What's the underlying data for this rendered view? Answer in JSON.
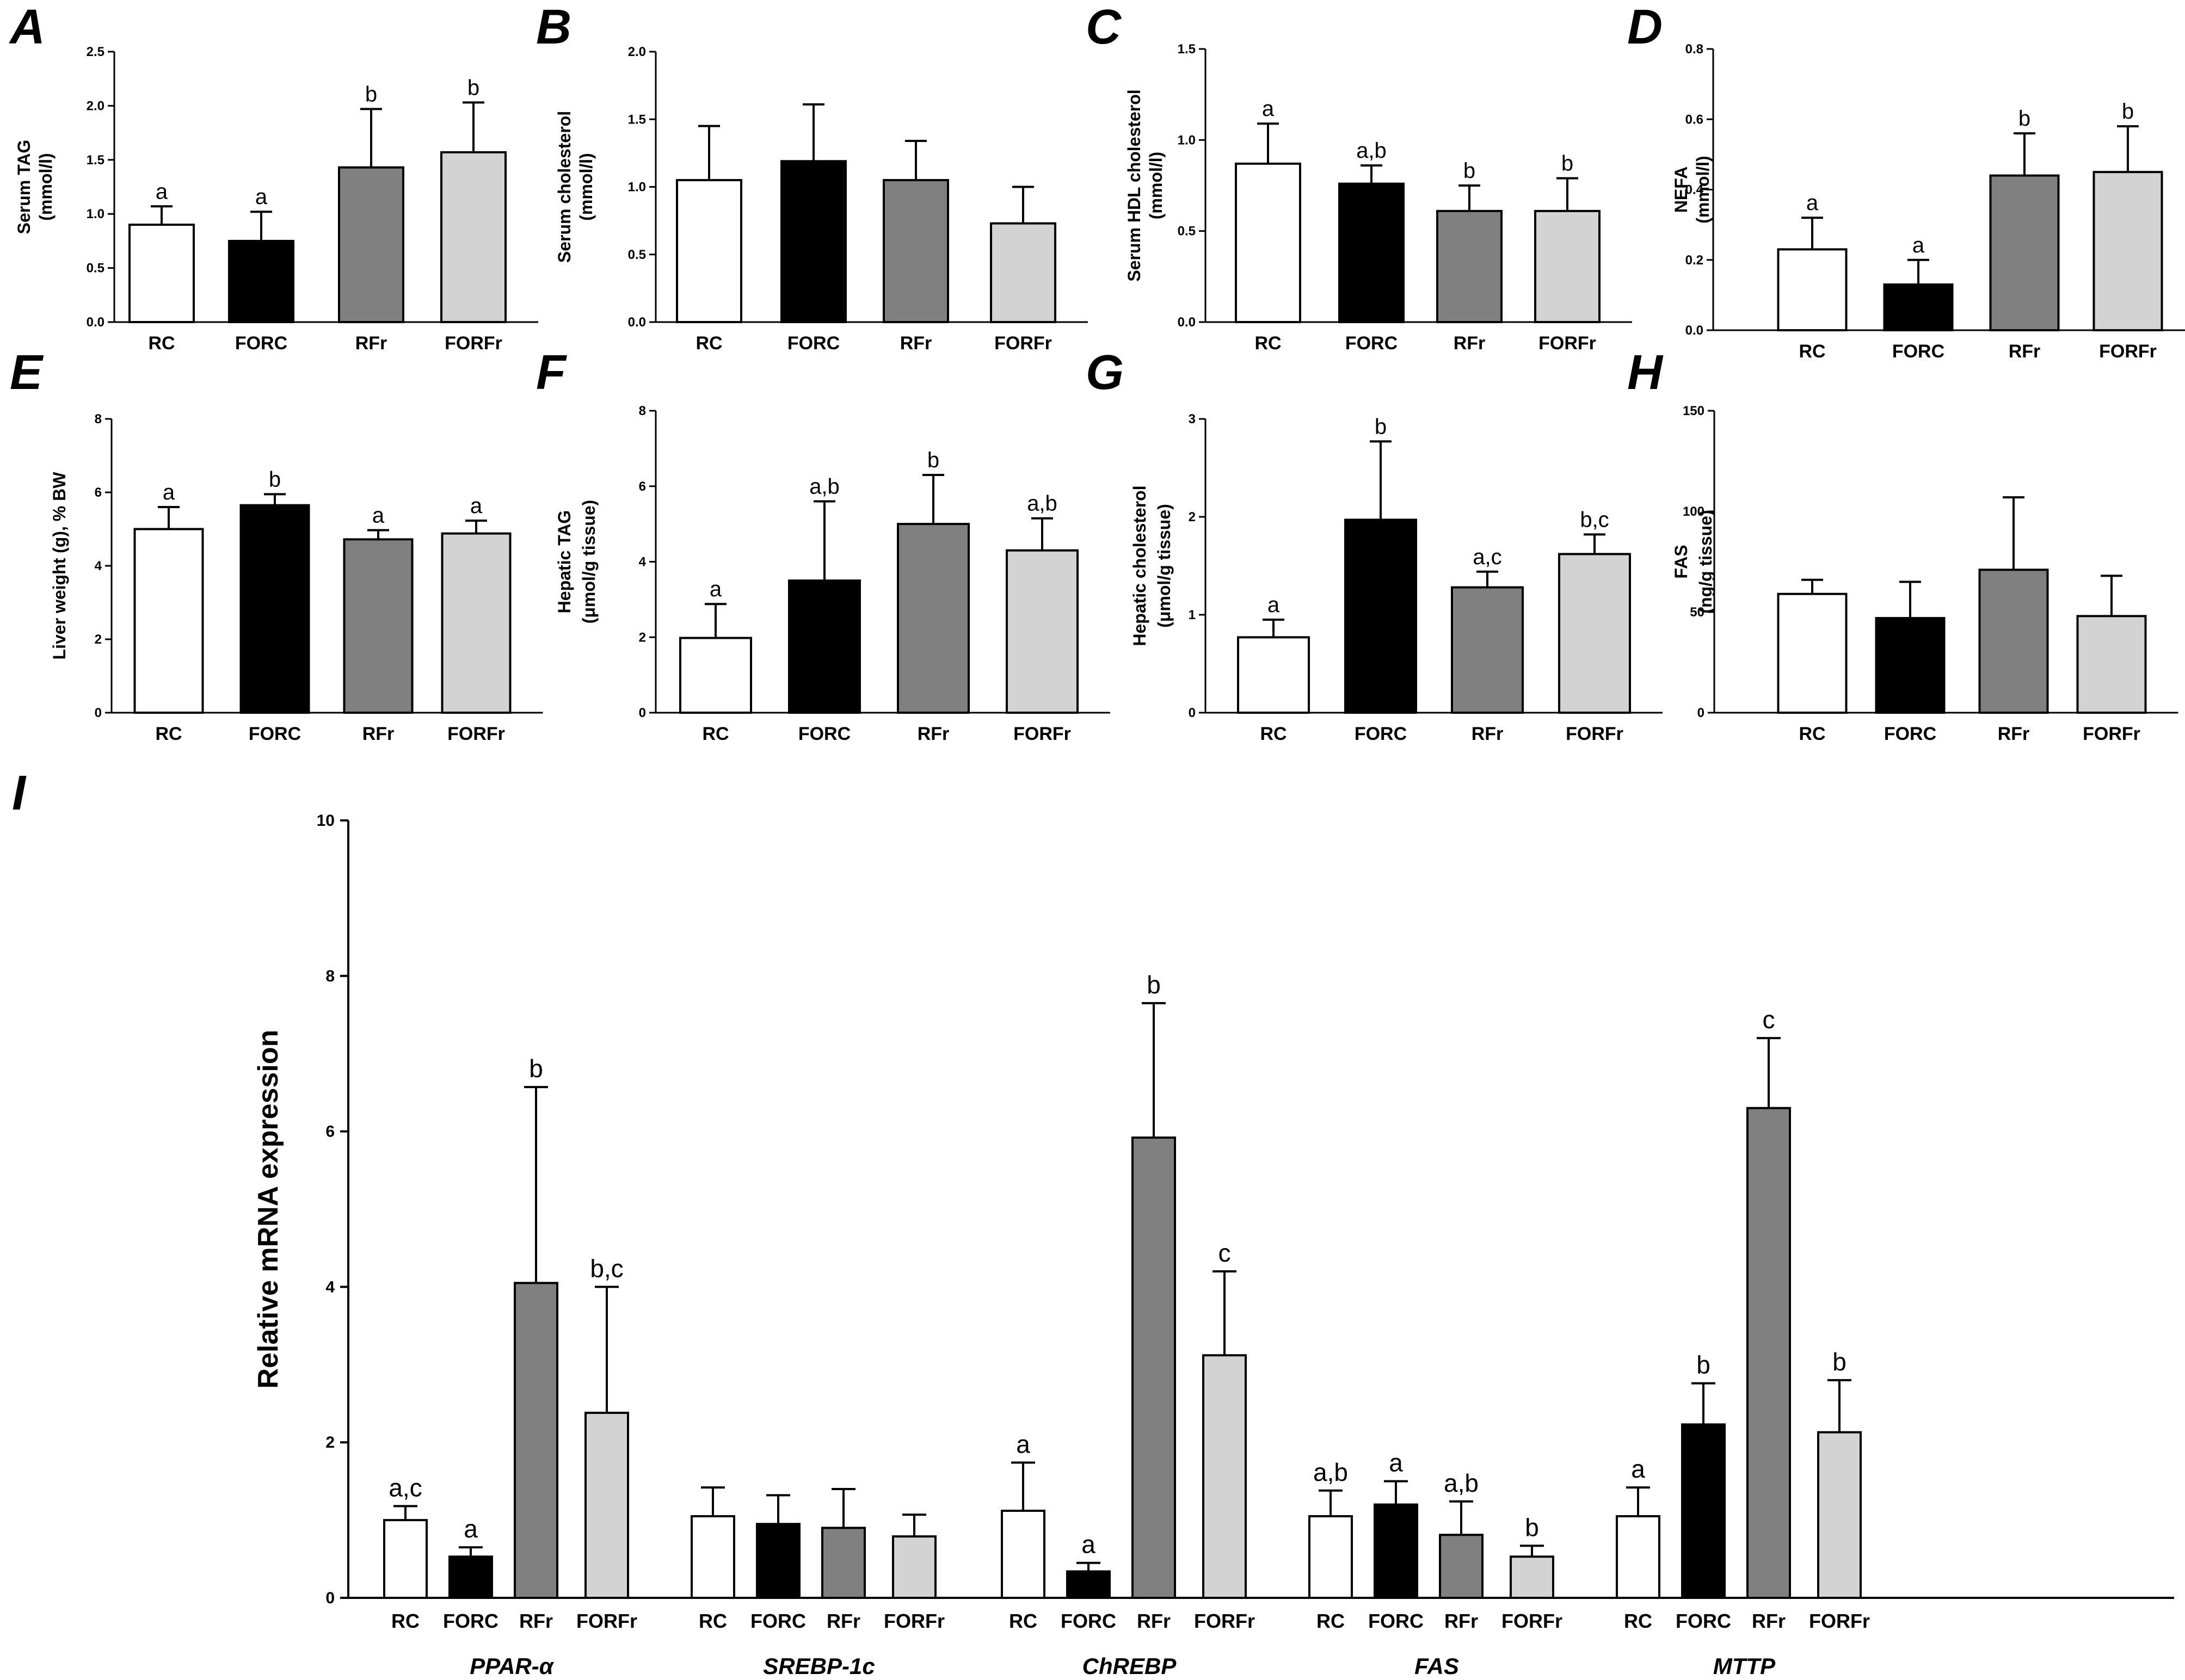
{
  "colors": {
    "RC": "#ffffff",
    "FORC": "#000000",
    "RFr": "#808080",
    "FORFr": "#d3d3d3"
  },
  "chart_data": [
    {
      "id": "A",
      "type": "bar",
      "letter": "A",
      "ylabel_lines": [
        "Serum TAG",
        "(mmol/l)"
      ],
      "categories": [
        "RC",
        "FORC",
        "RFr",
        "FORFr"
      ],
      "values": [
        0.9,
        0.75,
        1.43,
        1.57
      ],
      "errors": [
        0.17,
        0.27,
        0.54,
        0.46
      ],
      "labels": [
        "a",
        "a",
        "b",
        "b"
      ],
      "ylim": [
        0,
        2.5
      ],
      "yticks": [
        "0.0",
        "0.5",
        "1.0",
        "1.5",
        "2.0",
        "2.5"
      ]
    },
    {
      "id": "B",
      "type": "bar",
      "letter": "B",
      "ylabel_lines": [
        "Serum cholesterol",
        "(mmol/l)"
      ],
      "categories": [
        "RC",
        "FORC",
        "RFr",
        "FORFr"
      ],
      "values": [
        1.05,
        1.19,
        1.05,
        0.73
      ],
      "errors": [
        0.4,
        0.42,
        0.29,
        0.27
      ],
      "labels": [
        "",
        "",
        "",
        ""
      ],
      "ylim": [
        0,
        2.0
      ],
      "yticks": [
        "0.0",
        "0.5",
        "1.0",
        "1.5",
        "2.0"
      ]
    },
    {
      "id": "C",
      "type": "bar",
      "letter": "C",
      "ylabel_lines": [
        "Serum HDL cholesterol",
        "(mmol/l)"
      ],
      "categories": [
        "RC",
        "FORC",
        "RFr",
        "FORFr"
      ],
      "values": [
        0.87,
        0.76,
        0.61,
        0.61
      ],
      "errors": [
        0.22,
        0.1,
        0.14,
        0.18
      ],
      "labels": [
        "a",
        "a,b",
        "b",
        "b"
      ],
      "ylim": [
        0,
        1.5
      ],
      "yticks": [
        "0.0",
        "0.5",
        "1.0",
        "1.5"
      ]
    },
    {
      "id": "D",
      "type": "bar",
      "letter": "D",
      "ylabel_lines": [
        "NEFA",
        "(mmol/l)"
      ],
      "categories": [
        "RC",
        "FORC",
        "RFr",
        "FORFr"
      ],
      "values": [
        0.23,
        0.13,
        0.44,
        0.45
      ],
      "errors": [
        0.09,
        0.07,
        0.12,
        0.13
      ],
      "labels": [
        "a",
        "a",
        "b",
        "b"
      ],
      "ylim": [
        0,
        0.8
      ],
      "yticks": [
        "0.0",
        "0.2",
        "0.4",
        "0.6",
        "0.8"
      ]
    },
    {
      "id": "E",
      "type": "bar",
      "letter": "E",
      "ylabel_lines": [
        "Liver weight (g), % BW"
      ],
      "categories": [
        "RC",
        "FORC",
        "RFr",
        "FORFr"
      ],
      "values": [
        5.0,
        5.65,
        4.72,
        4.88
      ],
      "errors": [
        0.6,
        0.3,
        0.25,
        0.35
      ],
      "labels": [
        "a",
        "b",
        "a",
        "a"
      ],
      "ylim": [
        0,
        8
      ],
      "yticks": [
        "0",
        "2",
        "4",
        "6",
        "8"
      ]
    },
    {
      "id": "F",
      "type": "bar",
      "letter": "F",
      "ylabel_lines": [
        "Hepatic TAG",
        "(μmol/g tissue)"
      ],
      "categories": [
        "RC",
        "FORC",
        "RFr",
        "FORFr"
      ],
      "values": [
        1.98,
        3.5,
        5.0,
        4.3
      ],
      "errors": [
        0.9,
        2.1,
        1.3,
        0.85
      ],
      "labels": [
        "a",
        "a,b",
        "b",
        "a,b"
      ],
      "ylim": [
        0,
        8
      ],
      "yticks": [
        "0",
        "2",
        "4",
        "6",
        "8"
      ]
    },
    {
      "id": "G",
      "type": "bar",
      "letter": "G",
      "ylabel_lines": [
        "Hepatic cholesterol",
        "(μmol/g tissue)"
      ],
      "categories": [
        "RC",
        "FORC",
        "RFr",
        "FORFr"
      ],
      "values": [
        0.77,
        1.97,
        1.28,
        1.62
      ],
      "errors": [
        0.18,
        0.8,
        0.16,
        0.2
      ],
      "labels": [
        "a",
        "b",
        "a,c",
        "b,c"
      ],
      "ylim": [
        0,
        3
      ],
      "yticks": [
        "0",
        "1",
        "2",
        "3"
      ]
    },
    {
      "id": "H",
      "type": "bar",
      "letter": "H",
      "ylabel_lines": [
        "FAS",
        "(ng/g tissue)"
      ],
      "categories": [
        "RC",
        "FORC",
        "RFr",
        "FORFr"
      ],
      "values": [
        59,
        47,
        71,
        48
      ],
      "errors": [
        7,
        18,
        36,
        20
      ],
      "labels": [
        "",
        "",
        "",
        ""
      ],
      "ylim": [
        0,
        150
      ],
      "yticks": [
        "0",
        "50",
        "100",
        "150"
      ]
    },
    {
      "id": "I",
      "type": "bar",
      "letter": "I",
      "ylabel": "Relative mRNA expression",
      "categories": [
        "RC",
        "FORC",
        "RFr",
        "FORFr"
      ],
      "groups": [
        "PPAR-α",
        "SREBP-1c",
        "ChREBP",
        "FAS",
        "MTTP"
      ],
      "series": [
        {
          "name": "PPAR-α",
          "values": [
            1.0,
            0.53,
            4.05,
            2.38
          ],
          "errors": [
            0.18,
            0.12,
            2.52,
            1.62
          ],
          "labels": [
            "a,c",
            "a",
            "b",
            "b,c"
          ]
        },
        {
          "name": "SREBP-1c",
          "values": [
            1.05,
            0.95,
            0.9,
            0.79
          ],
          "errors": [
            0.37,
            0.37,
            0.5,
            0.28
          ],
          "labels": [
            "",
            "",
            "",
            ""
          ]
        },
        {
          "name": "ChREBP",
          "values": [
            1.12,
            0.34,
            5.92,
            3.12
          ],
          "errors": [
            0.62,
            0.11,
            1.73,
            1.08
          ],
          "labels": [
            "a",
            "a",
            "b",
            "c"
          ]
        },
        {
          "name": "FAS",
          "values": [
            1.05,
            1.2,
            0.81,
            0.53
          ],
          "errors": [
            0.33,
            0.3,
            0.43,
            0.14
          ],
          "labels": [
            "a,b",
            "a",
            "a,b",
            "b"
          ]
        },
        {
          "name": "MTTP",
          "values": [
            1.05,
            2.23,
            6.3,
            2.13
          ],
          "errors": [
            0.37,
            0.53,
            0.9,
            0.67
          ],
          "labels": [
            "a",
            "b",
            "c",
            "b"
          ]
        }
      ],
      "ylim": [
        0,
        10
      ],
      "yticks": [
        "0",
        "2",
        "4",
        "6",
        "8",
        "10"
      ]
    }
  ]
}
